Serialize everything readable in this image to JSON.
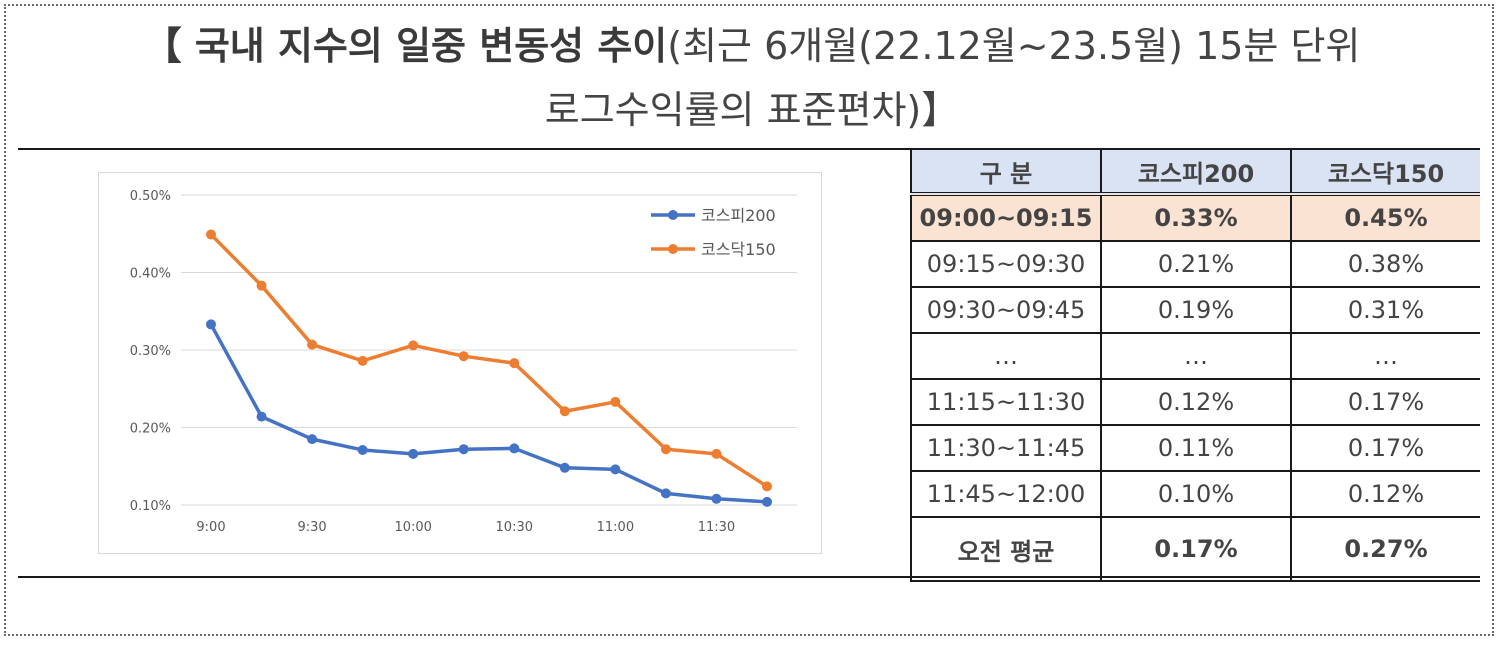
{
  "title": {
    "bold": "【 국내 지수의 일중 변동성 추이",
    "rest": "(최근 6개월(22.12월~23.5월) 15분 단위",
    "line2": "로그수익률의 표준편차)】"
  },
  "chart_data": {
    "type": "line",
    "x": [
      "9:00",
      "9:15",
      "9:30",
      "9:45",
      "10:00",
      "10:15",
      "10:30",
      "10:45",
      "11:00",
      "11:15",
      "11:30",
      "11:45"
    ],
    "xtick_labels": [
      "9:00",
      "9:30",
      "10:00",
      "10:30",
      "11:00",
      "11:30"
    ],
    "yticks": [
      "0.10%",
      "0.20%",
      "0.30%",
      "0.40%",
      "0.50%"
    ],
    "ylim": [
      0.1,
      0.5
    ],
    "legend_position": "top-right",
    "grid": true,
    "series": [
      {
        "name": "코스피200",
        "color": "#4472c4",
        "values": [
          0.333,
          0.214,
          0.185,
          0.171,
          0.166,
          0.172,
          0.173,
          0.148,
          0.146,
          0.115,
          0.108,
          0.104
        ]
      },
      {
        "name": "코스닥150",
        "color": "#ed7d31",
        "values": [
          0.449,
          0.383,
          0.307,
          0.286,
          0.306,
          0.292,
          0.283,
          0.221,
          0.233,
          0.172,
          0.166,
          0.124
        ]
      }
    ]
  },
  "table": {
    "headers": [
      "구 분",
      "코스피200",
      "코스닥150"
    ],
    "rows": [
      [
        "09:00~09:15",
        "0.33%",
        "0.45%"
      ],
      [
        "09:15~09:30",
        "0.21%",
        "0.38%"
      ],
      [
        "09:30~09:45",
        "0.19%",
        "0.31%"
      ],
      [
        "…",
        "…",
        "…"
      ],
      [
        "11:15~11:30",
        "0.12%",
        "0.17%"
      ],
      [
        "11:30~11:45",
        "0.11%",
        "0.17%"
      ],
      [
        "11:45~12:00",
        "0.10%",
        "0.12%"
      ]
    ],
    "average": [
      "오전 평균",
      "0.17%",
      "0.27%"
    ],
    "highlight_color": "#fbe3d3",
    "header_color": "#dae3f3"
  }
}
